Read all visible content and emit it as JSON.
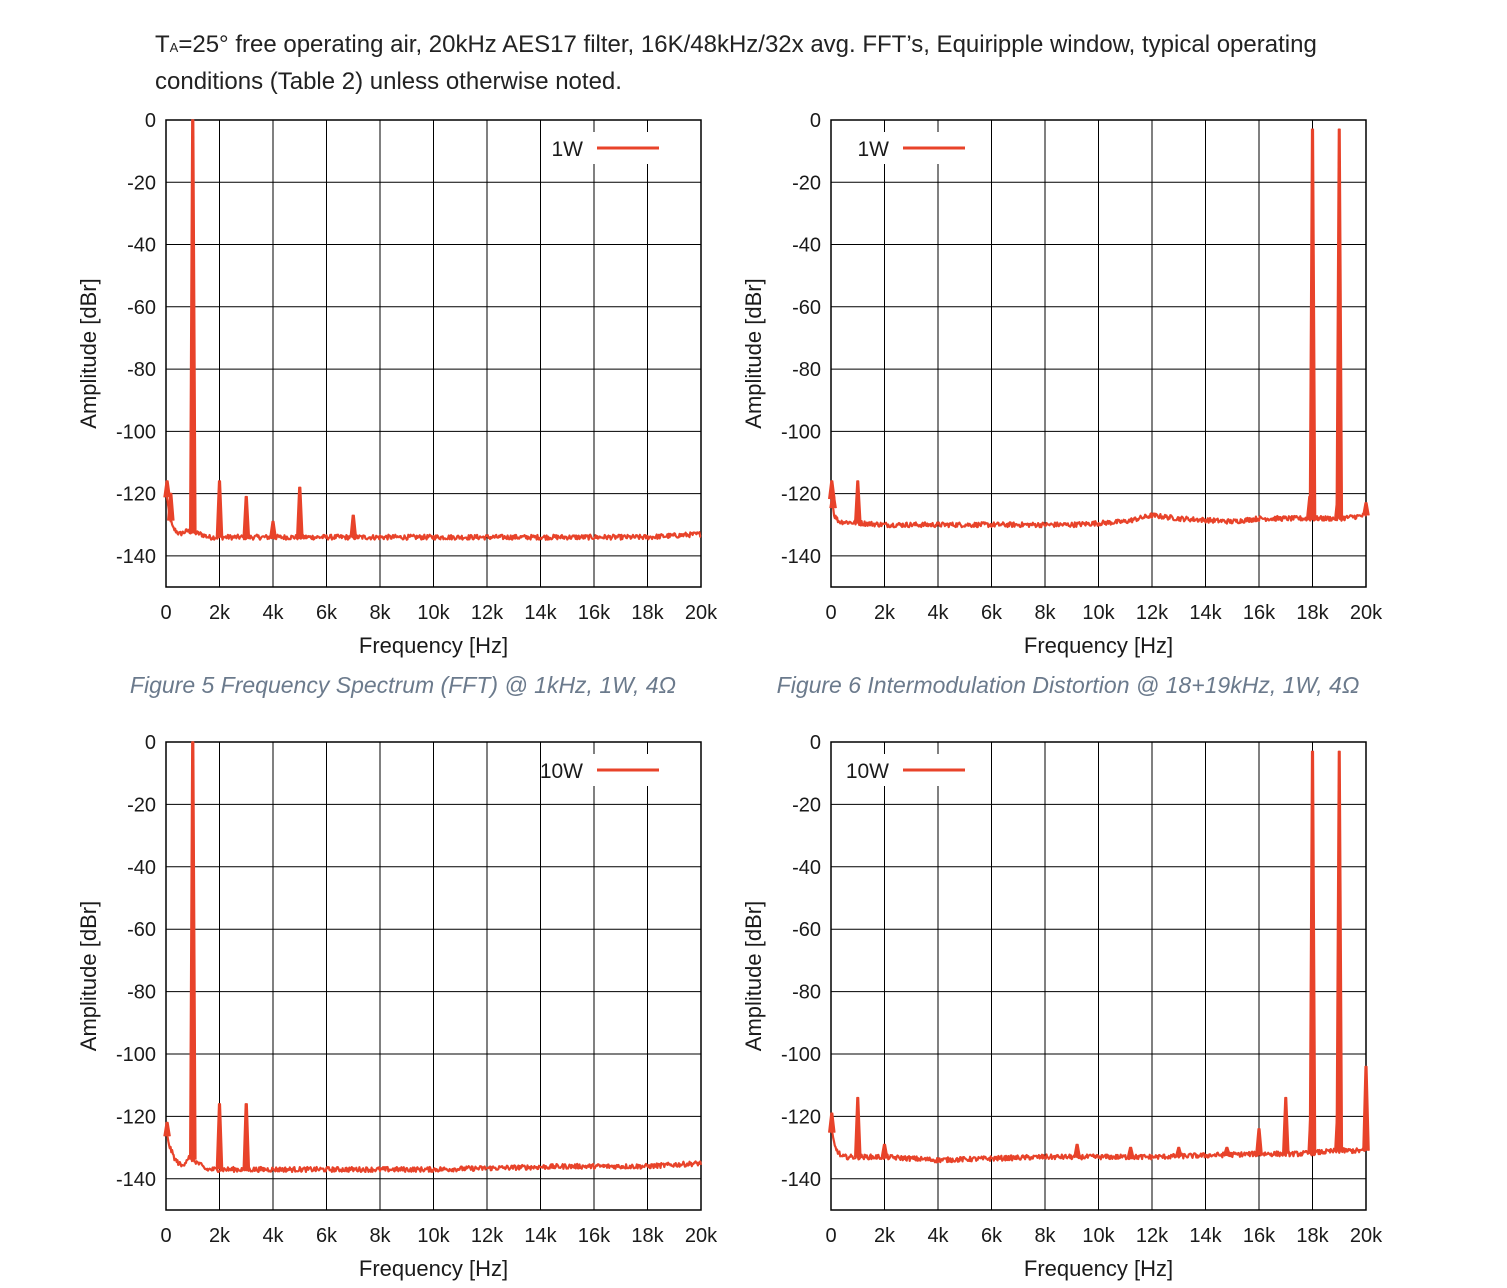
{
  "header": {
    "line1_prefix": "T",
    "line1_sub": "A",
    "line1_rest": "=25° free operating air, 20kHz AES17 filter, 16K/48kHz/32x avg. FFT’s, Equiripple window, typical operating",
    "line2": "conditions (Table 2) unless otherwise noted."
  },
  "captions": [
    "Figure 5 Frequency Spectrum (FFT) @ 1kHz, 1W, 4Ω",
    "Figure 6 Intermodulation Distortion @ 18+19kHz, 1W, 4Ω"
  ],
  "colors": {
    "trace": "#e8432a",
    "grid": "#000000",
    "axis_text": "#1a1a1a"
  },
  "chart_data": [
    {
      "type": "line",
      "title": "",
      "xlabel": "Frequency [Hz]",
      "ylabel": "Amplitude [dBr]",
      "xlim": [
        0,
        20000
      ],
      "ylim": [
        -150,
        0
      ],
      "x_ticks": [
        0,
        2000,
        4000,
        6000,
        8000,
        10000,
        12000,
        14000,
        16000,
        18000,
        20000
      ],
      "x_tick_labels": [
        "0",
        "2k",
        "4k",
        "6k",
        "8k",
        "10k",
        "12k",
        "14k",
        "16k",
        "18k",
        "20k"
      ],
      "y_ticks": [
        0,
        -20,
        -40,
        -60,
        -80,
        -100,
        -120,
        -140
      ],
      "y_tick_labels": [
        "0",
        "-20",
        "-40",
        "-60",
        "-80",
        "-100",
        "-120",
        "-140"
      ],
      "grid": true,
      "legend_position": "top-right",
      "series": [
        {
          "name": "1W",
          "floor": [
            [
              0,
              -118
            ],
            [
              100,
              -126
            ],
            [
              250,
              -131
            ],
            [
              500,
              -133
            ],
            [
              800,
              -132
            ],
            [
              1300,
              -133
            ],
            [
              1600,
              -134
            ],
            [
              5000,
              -134
            ],
            [
              10000,
              -134
            ],
            [
              15000,
              -134
            ],
            [
              18000,
              -134
            ],
            [
              20000,
              -133
            ]
          ],
          "peaks": [
            [
              40,
              -116
            ],
            [
              180,
              -120
            ],
            [
              1000,
              0
            ],
            [
              2000,
              -116
            ],
            [
              3000,
              -121
            ],
            [
              4000,
              -129
            ],
            [
              5000,
              -118
            ],
            [
              7000,
              -127
            ]
          ]
        }
      ]
    },
    {
      "type": "line",
      "title": "",
      "xlabel": "Frequency [Hz]",
      "ylabel": "Amplitude [dBr]",
      "xlim": [
        0,
        20000
      ],
      "ylim": [
        -150,
        0
      ],
      "x_ticks": [
        0,
        2000,
        4000,
        6000,
        8000,
        10000,
        12000,
        14000,
        16000,
        18000,
        20000
      ],
      "x_tick_labels": [
        "0",
        "2k",
        "4k",
        "6k",
        "8k",
        "10k",
        "12k",
        "14k",
        "16k",
        "18k",
        "20k"
      ],
      "y_ticks": [
        0,
        -20,
        -40,
        -60,
        -80,
        -100,
        -120,
        -140
      ],
      "y_tick_labels": [
        "0",
        "-20",
        "-40",
        "-60",
        "-80",
        "-100",
        "-120",
        "-140"
      ],
      "grid": true,
      "legend_position": "top-left",
      "series": [
        {
          "name": "1W",
          "floor": [
            [
              0,
              -120
            ],
            [
              120,
              -127
            ],
            [
              300,
              -129
            ],
            [
              2000,
              -130
            ],
            [
              5000,
              -130
            ],
            [
              9000,
              -130
            ],
            [
              11000,
              -129
            ],
            [
              12000,
              -127
            ],
            [
              13000,
              -128
            ],
            [
              15000,
              -129
            ],
            [
              16000,
              -128
            ],
            [
              17500,
              -128
            ],
            [
              19000,
              -128
            ],
            [
              20000,
              -127
            ]
          ],
          "peaks": [
            [
              30,
              -116
            ],
            [
              80,
              -120
            ],
            [
              1000,
              -116
            ],
            [
              17900,
              -121
            ],
            [
              18000,
              -3
            ],
            [
              18950,
              -121
            ],
            [
              19000,
              -3
            ],
            [
              20000,
              -123
            ]
          ]
        }
      ]
    },
    {
      "type": "line",
      "title": "",
      "xlabel": "Frequency [Hz]",
      "ylabel": "Amplitude [dBr]",
      "xlim": [
        0,
        20000
      ],
      "ylim": [
        -150,
        0
      ],
      "x_ticks": [
        0,
        2000,
        4000,
        6000,
        8000,
        10000,
        12000,
        14000,
        16000,
        18000,
        20000
      ],
      "x_tick_labels": [
        "0",
        "2k",
        "4k",
        "6k",
        "8k",
        "10k",
        "12k",
        "14k",
        "16k",
        "18k",
        "20k"
      ],
      "y_ticks": [
        0,
        -20,
        -40,
        -60,
        -80,
        -100,
        -120,
        -140
      ],
      "y_tick_labels": [
        "0",
        "-20",
        "-40",
        "-60",
        "-80",
        "-100",
        "-120",
        "-140"
      ],
      "grid": true,
      "legend_position": "top-right",
      "series": [
        {
          "name": "10W",
          "floor": [
            [
              0,
              -125
            ],
            [
              150,
              -130
            ],
            [
              350,
              -134
            ],
            [
              600,
              -136
            ],
            [
              850,
              -133
            ],
            [
              1200,
              -135
            ],
            [
              1500,
              -137
            ],
            [
              5000,
              -137
            ],
            [
              10000,
              -137
            ],
            [
              15000,
              -136
            ],
            [
              18000,
              -136
            ],
            [
              20000,
              -135
            ]
          ],
          "peaks": [
            [
              40,
              -122
            ],
            [
              1000,
              0
            ],
            [
              2000,
              -116
            ],
            [
              3000,
              -116
            ]
          ]
        }
      ]
    },
    {
      "type": "line",
      "title": "",
      "xlabel": "Frequency [Hz]",
      "ylabel": "Amplitude [dBr]",
      "xlim": [
        0,
        20000
      ],
      "ylim": [
        -150,
        0
      ],
      "x_ticks": [
        0,
        2000,
        4000,
        6000,
        8000,
        10000,
        12000,
        14000,
        16000,
        18000,
        20000
      ],
      "x_tick_labels": [
        "0",
        "2k",
        "4k",
        "6k",
        "8k",
        "10k",
        "12k",
        "14k",
        "16k",
        "18k",
        "20k"
      ],
      "y_ticks": [
        0,
        -20,
        -40,
        -60,
        -80,
        -100,
        -120,
        -140
      ],
      "y_tick_labels": [
        "0",
        "-20",
        "-40",
        "-60",
        "-80",
        "-100",
        "-120",
        "-140"
      ],
      "grid": true,
      "legend_position": "top-left",
      "series": [
        {
          "name": "10W",
          "floor": [
            [
              0,
              -124
            ],
            [
              150,
              -130
            ],
            [
              400,
              -133
            ],
            [
              2000,
              -133
            ],
            [
              4000,
              -134
            ],
            [
              8000,
              -133
            ],
            [
              12000,
              -133
            ],
            [
              16000,
              -132
            ],
            [
              17500,
              -132
            ],
            [
              19000,
              -131
            ],
            [
              20000,
              -131
            ]
          ],
          "peaks": [
            [
              30,
              -119
            ],
            [
              1000,
              -114
            ],
            [
              2000,
              -129
            ],
            [
              9200,
              -129
            ],
            [
              11200,
              -130
            ],
            [
              13000,
              -130
            ],
            [
              14800,
              -130
            ],
            [
              16000,
              -124
            ],
            [
              17000,
              -114
            ],
            [
              17950,
              -117
            ],
            [
              18000,
              -3
            ],
            [
              18950,
              -117
            ],
            [
              19000,
              -3
            ],
            [
              20000,
              -104
            ]
          ]
        }
      ]
    }
  ]
}
